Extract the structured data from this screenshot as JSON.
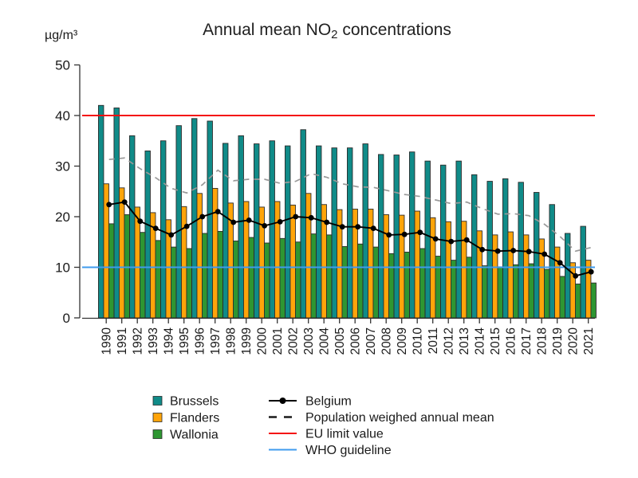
{
  "title": {
    "pre": "Annual mean NO",
    "sub": "2",
    "post": " concentrations"
  },
  "y_axis": {
    "unit": "µg/m³",
    "tick_labels": [
      "0",
      "10",
      "20",
      "30",
      "40",
      "50"
    ]
  },
  "chart_data": {
    "type": "bar",
    "title": "Annual mean NO2 concentrations",
    "ylabel": "µg/m³",
    "ylim": [
      0,
      50
    ],
    "yticks": [
      0,
      10,
      20,
      30,
      40,
      50
    ],
    "grid": false,
    "legend_position": "bottom",
    "categories": [
      "1990",
      "1991",
      "1992",
      "1993",
      "1994",
      "1995",
      "1996",
      "1997",
      "1998",
      "1999",
      "2000",
      "2001",
      "2002",
      "2003",
      "2004",
      "2005",
      "2006",
      "2007",
      "2008",
      "2009",
      "2010",
      "2011",
      "2012",
      "2013",
      "2014",
      "2015",
      "2016",
      "2017",
      "2018",
      "2019",
      "2020",
      "2021"
    ],
    "series": [
      {
        "name": "Brussels",
        "type": "bar",
        "color": "#108b88",
        "values": [
          42.0,
          41.5,
          36.0,
          33.0,
          35.0,
          38.0,
          39.4,
          38.9,
          34.5,
          36.0,
          34.4,
          35.0,
          34.0,
          37.2,
          34.0,
          33.6,
          33.6,
          34.4,
          32.3,
          32.2,
          32.8,
          31.0,
          30.2,
          31.0,
          28.3,
          27.0,
          27.5,
          26.8,
          24.8,
          22.4,
          16.7,
          18.1
        ]
      },
      {
        "name": "Flanders",
        "type": "bar",
        "color": "#ffa40a",
        "values": [
          26.5,
          25.7,
          21.9,
          20.8,
          19.4,
          22.0,
          24.6,
          25.6,
          22.7,
          23.0,
          21.9,
          23.0,
          22.3,
          24.6,
          22.4,
          21.4,
          21.5,
          21.5,
          20.4,
          20.3,
          21.1,
          19.8,
          19.0,
          19.1,
          17.2,
          16.4,
          17.0,
          16.4,
          15.6,
          14.0,
          10.9,
          11.4
        ]
      },
      {
        "name": "Wallonia",
        "type": "bar",
        "color": "#2e9632",
        "values": [
          18.6,
          20.4,
          16.9,
          15.3,
          14.0,
          13.7,
          16.7,
          17.1,
          15.2,
          15.9,
          14.8,
          15.7,
          15.0,
          16.6,
          16.4,
          14.1,
          14.6,
          14.0,
          12.7,
          13.0,
          13.7,
          12.2,
          11.4,
          12.0,
          10.3,
          10.1,
          10.5,
          10.7,
          9.6,
          8.2,
          6.7,
          6.9
        ]
      },
      {
        "name": "Belgium",
        "type": "line",
        "marker": "circle",
        "color": "#000000",
        "values": [
          22.4,
          22.9,
          19.1,
          17.7,
          16.4,
          18.1,
          20.0,
          21.0,
          18.9,
          19.3,
          18.2,
          19.0,
          20.0,
          19.8,
          18.9,
          18.0,
          18.0,
          17.7,
          16.4,
          16.5,
          16.9,
          15.6,
          15.1,
          15.4,
          13.5,
          13.2,
          13.3,
          13.1,
          12.6,
          10.9,
          8.3,
          9.1
        ]
      },
      {
        "name": "Population weighed annual mean",
        "type": "line",
        "style": "dashed",
        "color": "#999999",
        "values": [
          31.3,
          31.6,
          29.5,
          27.7,
          25.6,
          24.7,
          26.3,
          29.2,
          27.1,
          27.4,
          27.4,
          26.6,
          27.0,
          28.5,
          27.8,
          26.5,
          25.9,
          25.8,
          25.1,
          24.4,
          24.0,
          23.3,
          22.6,
          22.9,
          21.6,
          20.5,
          20.6,
          20.2,
          18.5,
          16.1,
          13.2,
          13.9
        ]
      },
      {
        "name": "EU limit value",
        "type": "hline",
        "color": "#f40e0e",
        "value": 40
      },
      {
        "name": "WHO guideline",
        "type": "hline",
        "color": "#3f9bee",
        "value": 10
      }
    ]
  },
  "legend": {
    "left_column": [
      "Brussels",
      "Flanders",
      "Wallonia"
    ],
    "right_column": [
      "Belgium",
      "Population weighed annual mean",
      "EU limit value",
      "WHO guideline"
    ]
  }
}
